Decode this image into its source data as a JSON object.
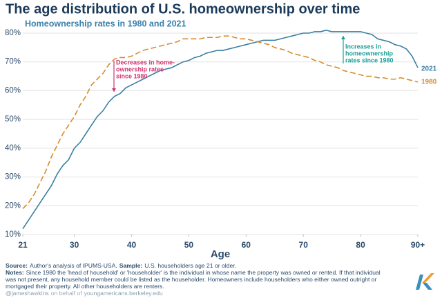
{
  "chart_data": {
    "type": "line",
    "title": "The age distribution of U.S. homeownership over time",
    "subtitle": "Homeownership rates in 1980 and 2021",
    "x_label": "Age",
    "x": [
      21,
      22,
      23,
      24,
      25,
      26,
      27,
      28,
      29,
      30,
      31,
      32,
      33,
      34,
      35,
      36,
      37,
      38,
      39,
      40,
      41,
      42,
      43,
      44,
      45,
      46,
      47,
      48,
      49,
      50,
      51,
      52,
      53,
      54,
      55,
      56,
      57,
      58,
      59,
      60,
      61,
      62,
      63,
      64,
      65,
      66,
      67,
      68,
      69,
      70,
      71,
      72,
      73,
      74,
      75,
      76,
      77,
      78,
      79,
      80,
      81,
      82,
      83,
      84,
      85,
      86,
      87,
      88,
      89,
      90
    ],
    "xlim": [
      21,
      90
    ],
    "xticks": [
      21,
      30,
      40,
      50,
      60,
      70,
      80,
      {
        "value": 90,
        "label": "90+"
      }
    ],
    "ylim": [
      10,
      80
    ],
    "yticks": [
      {
        "value": 10,
        "label": "10%"
      },
      {
        "value": 20,
        "label": "20%"
      },
      {
        "value": 30,
        "label": "30%"
      },
      {
        "value": 40,
        "label": "40%"
      },
      {
        "value": 50,
        "label": "50%"
      },
      {
        "value": 60,
        "label": "60%"
      },
      {
        "value": 70,
        "label": "70%"
      },
      {
        "value": 80,
        "label": "80%"
      }
    ],
    "grid": true,
    "series": [
      {
        "name": "2021",
        "color": "#3a7fa3",
        "dashed": false,
        "values": [
          12,
          15,
          18,
          21,
          24,
          27,
          31,
          34,
          36,
          40,
          42,
          45,
          48,
          51,
          53,
          56,
          58,
          59,
          61,
          62,
          63,
          64,
          65,
          66,
          67,
          67.5,
          68,
          69,
          70,
          70.5,
          71.5,
          72,
          73,
          73.5,
          74,
          74,
          74.5,
          75,
          75.5,
          76,
          76.5,
          77,
          77.5,
          77.5,
          77.5,
          78,
          78.5,
          79,
          79.5,
          80,
          80,
          80.5,
          80.5,
          81,
          80.5,
          80.5,
          80.5,
          80.5,
          80.5,
          80.5,
          80,
          79.5,
          78,
          77.5,
          77,
          76,
          75.5,
          74.5,
          72,
          68
        ]
      },
      {
        "name": "1980",
        "color": "#d88a2b",
        "dashed": true,
        "values": [
          19,
          21,
          24,
          28,
          32,
          37,
          41,
          45,
          48,
          51,
          55,
          58,
          62,
          64,
          66,
          69,
          71,
          71.5,
          71.5,
          72,
          73,
          74,
          74.5,
          75,
          75.5,
          76,
          76.5,
          77,
          78,
          78,
          78,
          78,
          78.5,
          78.5,
          78.5,
          79,
          79,
          78.5,
          78,
          78,
          77.5,
          77,
          76.5,
          76,
          75,
          74.5,
          74,
          73,
          72.5,
          72,
          71.5,
          70.5,
          70,
          69,
          68.5,
          68,
          67,
          66.5,
          66,
          65.5,
          65,
          65,
          64.5,
          64.5,
          64,
          64,
          64.5,
          64,
          63.5,
          63
        ]
      }
    ],
    "annotations": [
      {
        "lines": [
          "Decreases in home-",
          "ownership rates",
          "since 1980"
        ],
        "color": "#d4336e"
      },
      {
        "lines": [
          "Increases in",
          "homeownership",
          "rates since 1980"
        ],
        "color": "#1a9e98"
      }
    ],
    "source_label": "Source:",
    "source": "Author's analysis of IPUMS-USA.",
    "sample_label": "Sample:",
    "sample": "U.S. householders age 21 or older.",
    "notes_label": "Notes:",
    "notes": [
      "Since 1980 the 'head of household' or 'householder' is the individual in whose name the property was owned or rented. If that individual",
      "was not present, any household member could be listed as the householder. Homeowners include householders who either owned outright or",
      "mortgaged their property. All other householders are renters."
    ],
    "credit_handle": "@jameshawkins",
    "credit_middle": "on behalf of",
    "credit_site": "youngamericans.berkeley.edu"
  }
}
